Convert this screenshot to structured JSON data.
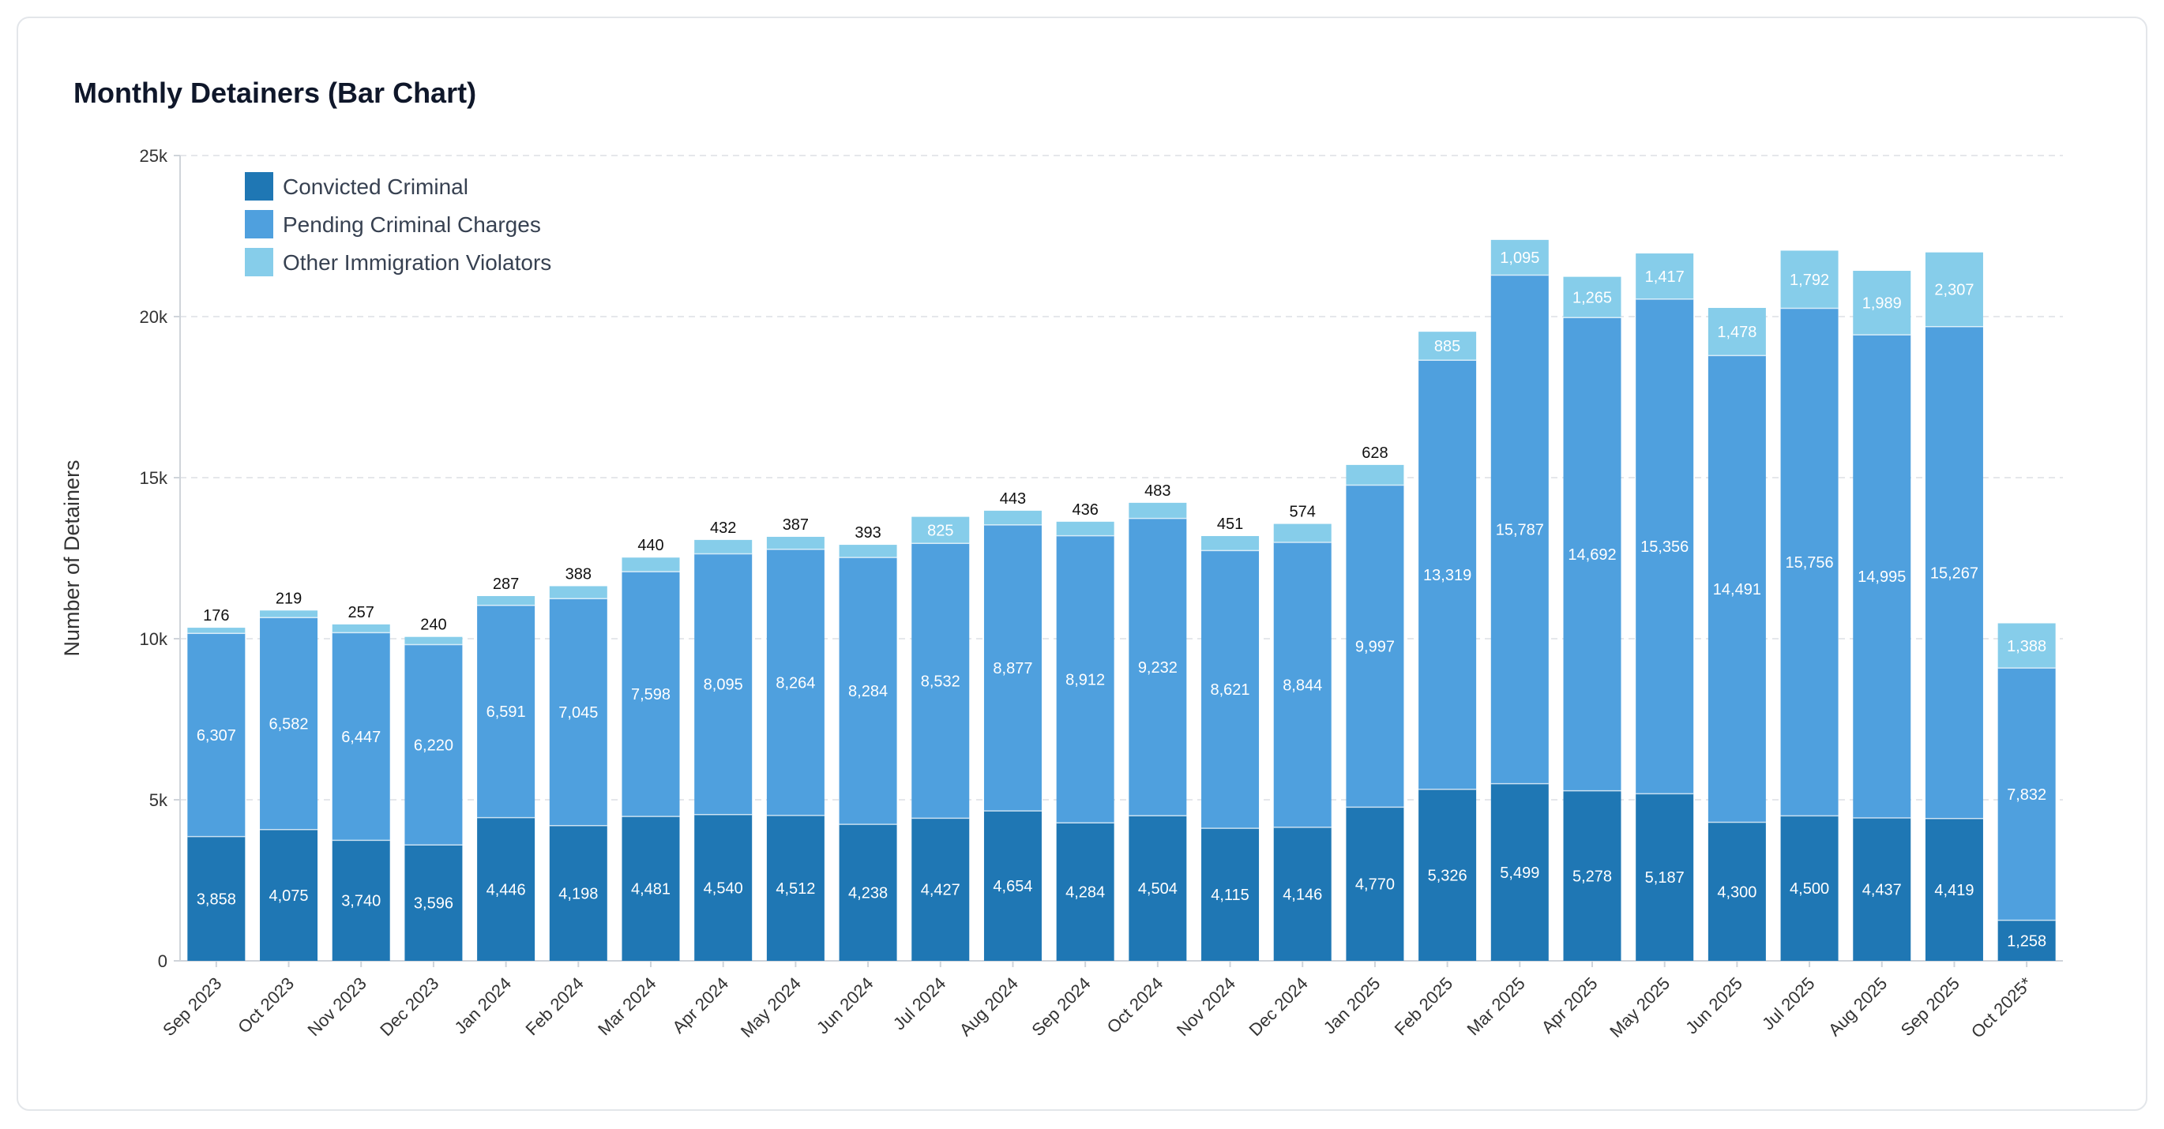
{
  "title": "Monthly Detainers (Bar Chart)",
  "colors": {
    "convicted": "#1f77b4",
    "pending": "#4fa0de",
    "other": "#86cdea",
    "grid": "#e5e7eb",
    "axis": "#cfd4da"
  },
  "chart_data": {
    "type": "bar",
    "stacked": true,
    "title": "Monthly Detainers (Bar Chart)",
    "xlabel": "",
    "ylabel": "Number of Detainers",
    "ylim": [
      0,
      25000
    ],
    "yticks": [
      {
        "value": 0,
        "label": "0"
      },
      {
        "value": 5000,
        "label": "5k"
      },
      {
        "value": 10000,
        "label": "10k"
      },
      {
        "value": 15000,
        "label": "15k"
      },
      {
        "value": 20000,
        "label": "20k"
      },
      {
        "value": 25000,
        "label": "25k"
      }
    ],
    "grid": true,
    "legend_position": "top-left",
    "categories": [
      "Sep 2023",
      "Oct 2023",
      "Nov 2023",
      "Dec 2023",
      "Jan 2024",
      "Feb 2024",
      "Mar 2024",
      "Apr 2024",
      "May 2024",
      "Jun 2024",
      "Jul 2024",
      "Aug 2024",
      "Sep 2024",
      "Oct 2024",
      "Nov 2024",
      "Dec 2024",
      "Jan 2025",
      "Feb 2025",
      "Mar 2025",
      "Apr 2025",
      "May 2025",
      "Jun 2025",
      "Jul 2025",
      "Aug 2025",
      "Sep 2025",
      "Oct 2025*"
    ],
    "series": [
      {
        "name": "Convicted Criminal",
        "key": "convicted",
        "values": [
          3858,
          4075,
          3740,
          3596,
          4446,
          4198,
          4481,
          4540,
          4512,
          4238,
          4427,
          4654,
          4284,
          4504,
          4115,
          4146,
          4770,
          5326,
          5499,
          5278,
          5187,
          4300,
          4500,
          4437,
          4419,
          1258
        ],
        "labels": [
          "3,858",
          "4,075",
          "3,740",
          "3,596",
          "4,446",
          "4,198",
          "4,481",
          "4,540",
          "4,512",
          "4,238",
          "4,427",
          "4,654",
          "4,284",
          "4,504",
          "4,115",
          "4,146",
          "4,770",
          "5,326",
          "5,499",
          "5,278",
          "5,187",
          "4,300",
          "4,500",
          "4,437",
          "4,419",
          "1,258"
        ]
      },
      {
        "name": "Pending Criminal Charges",
        "key": "pending",
        "values": [
          6307,
          6582,
          6447,
          6220,
          6591,
          7045,
          7598,
          8095,
          8264,
          8284,
          8532,
          8877,
          8912,
          9232,
          8621,
          8844,
          9997,
          13319,
          15787,
          14692,
          15356,
          14491,
          15756,
          14995,
          15267,
          7832
        ],
        "labels": [
          "6,307",
          "6,582",
          "6,447",
          "6,220",
          "6,591",
          "7,045",
          "7,598",
          "8,095",
          "8,264",
          "8,284",
          "8,532",
          "8,877",
          "8,912",
          "9,232",
          "8,621",
          "8,844",
          "9,997",
          "13,319",
          "15,787",
          "14,692",
          "15,356",
          "14,491",
          "15,756",
          "14,995",
          "15,267",
          "7,832"
        ]
      },
      {
        "name": "Other Immigration Violators",
        "key": "other",
        "values": [
          176,
          219,
          257,
          240,
          287,
          388,
          440,
          432,
          387,
          393,
          825,
          443,
          436,
          483,
          451,
          574,
          628,
          885,
          1095,
          1265,
          1417,
          1478,
          1792,
          1989,
          2307,
          1388
        ],
        "labels": [
          "176",
          "219",
          "257",
          "240",
          "287",
          "388",
          "440",
          "432",
          "387",
          "393",
          "825",
          "443",
          "436",
          "483",
          "451",
          "574",
          "628",
          "885",
          "1,095",
          "1,265",
          "1,417",
          "1,478",
          "1,792",
          "1,989",
          "2,307",
          "1,388"
        ]
      }
    ]
  }
}
